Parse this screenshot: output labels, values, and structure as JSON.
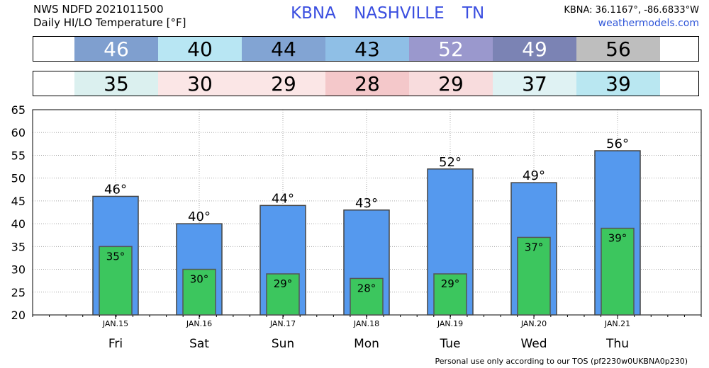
{
  "header": {
    "line1": "NWS NDFD 2021011500",
    "line2": "Daily HI/LO Temperature [°F]",
    "station": "KBNA",
    "city": "NASHVILLE",
    "state": "TN",
    "coords": "KBNA: 36.1167°, -86.6833°W",
    "site": "weathermodels.com"
  },
  "hi_strip": {
    "values": [
      "46",
      "40",
      "44",
      "43",
      "52",
      "49",
      "56"
    ],
    "colors": [
      "#7f9fcf",
      "#b8e6f3",
      "#82a4d3",
      "#8fbfe6",
      "#9a98cd",
      "#7b83b4",
      "#bebebe"
    ]
  },
  "lo_strip": {
    "values": [
      "35",
      "30",
      "29",
      "28",
      "29",
      "37",
      "39"
    ],
    "colors": [
      "#dbf0ef",
      "#fbe6e6",
      "#fbe6e6",
      "#f4c8ca",
      "#f8dcdd",
      "#dff2f3",
      "#b9e7f1"
    ]
  },
  "footer": "Personal use only according to our TOS (pf2230w0UKBNA0p230)",
  "chart_data": {
    "type": "bar",
    "categories": [
      "JAN.15",
      "JAN.16",
      "JAN.17",
      "JAN.18",
      "JAN.19",
      "JAN.20",
      "JAN.21"
    ],
    "days": [
      "Fri",
      "Sat",
      "Sun",
      "Mon",
      "Tue",
      "Wed",
      "Thu"
    ],
    "series": [
      {
        "name": "HI",
        "values": [
          46,
          40,
          44,
          43,
          52,
          49,
          56
        ],
        "color": "#5599ee"
      },
      {
        "name": "LO",
        "values": [
          35,
          30,
          29,
          28,
          29,
          37,
          39
        ],
        "color": "#3cc65e"
      }
    ],
    "hi_labels": [
      "46°",
      "40°",
      "44°",
      "43°",
      "52°",
      "49°",
      "56°"
    ],
    "lo_labels": [
      "35°",
      "30°",
      "29°",
      "28°",
      "29°",
      "37°",
      "39°"
    ],
    "ylim": [
      20,
      65
    ],
    "yticks": [
      20,
      25,
      30,
      35,
      40,
      45,
      50,
      55,
      60,
      65
    ],
    "grid": true
  }
}
